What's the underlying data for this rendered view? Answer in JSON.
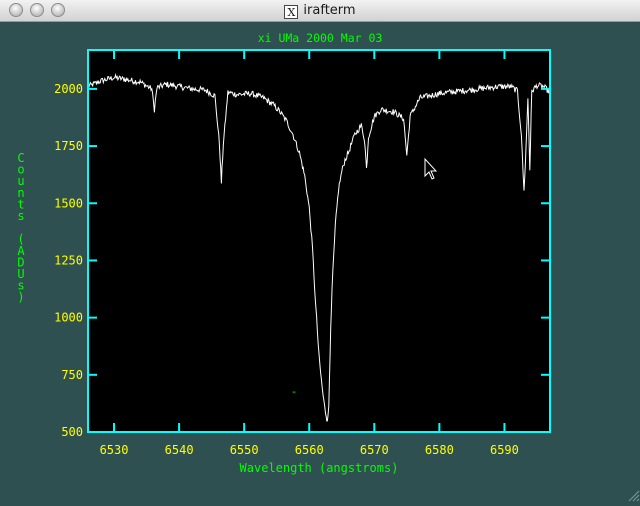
{
  "window": {
    "title": "irafterm"
  },
  "colors": {
    "background": "#2f5050",
    "frame": "#00ffff",
    "title_text": "#00ff00",
    "tick_labels": "#ffff00",
    "spectrum": "#ffffff",
    "plot_bg": "#000000"
  },
  "chart_data": {
    "type": "line",
    "title": "xi UMa 2000 Mar 03",
    "xlabel": "Wavelength (angstroms)",
    "ylabel": "Counts (ADUs)",
    "xlim": [
      6526,
      6597
    ],
    "ylim": [
      500,
      2170
    ],
    "xticks": [
      6530,
      6540,
      6550,
      6560,
      6570,
      6580,
      6590
    ],
    "yticks": [
      500,
      750,
      1000,
      1250,
      1500,
      1750,
      2000
    ],
    "xtick_labels": [
      "6530",
      "6540",
      "6550",
      "6560",
      "6570",
      "6580",
      "6590"
    ],
    "ytick_labels": [
      "500",
      "750",
      "1000",
      "1250",
      "1500",
      "1750",
      "2000"
    ],
    "series": [
      {
        "x": [
          6526.0,
          6528.0,
          6530.0,
          6532.0,
          6534.0,
          6535.8,
          6536.2,
          6536.6,
          6538.0,
          6540.0,
          6542.0,
          6544.0,
          6545.5,
          6546.2,
          6546.5,
          6546.8,
          6547.5,
          6549.0,
          6551.0,
          6553.0,
          6554.5,
          6555.5,
          6556.5,
          6557.5,
          6558.5,
          6559.3,
          6560.0,
          6560.5,
          6561.0,
          6561.5,
          6562.0,
          6562.4,
          6562.7,
          6562.85,
          6563.0,
          6563.2,
          6563.5,
          6564.0,
          6564.5,
          6565.0,
          6565.5,
          6566.0,
          6567.0,
          6568.0,
          6568.5,
          6568.8,
          6569.1,
          6570.0,
          6571.0,
          6573.0,
          6574.5,
          6575.0,
          6575.5,
          6577.0,
          6580.0,
          6583.0,
          6586.0,
          6589.0,
          6591.0,
          6592.0,
          6592.6,
          6593.0,
          6593.3,
          6593.6,
          6593.9,
          6594.2,
          6595.0,
          6596.0,
          6596.8
        ],
        "y": [
          2010,
          2035,
          2050,
          2040,
          2030,
          2000,
          1910,
          2005,
          2020,
          2010,
          2000,
          1995,
          1970,
          1760,
          1590,
          1760,
          1985,
          1975,
          1980,
          1960,
          1930,
          1900,
          1860,
          1800,
          1720,
          1620,
          1480,
          1300,
          1050,
          830,
          690,
          600,
          560,
          555,
          620,
          850,
          1120,
          1400,
          1560,
          1640,
          1690,
          1720,
          1800,
          1840,
          1780,
          1650,
          1790,
          1880,
          1910,
          1900,
          1870,
          1710,
          1880,
          1960,
          1980,
          1990,
          2000,
          2010,
          2010,
          1990,
          1800,
          1550,
          1730,
          1960,
          1650,
          1990,
          2015,
          2010,
          1990
        ]
      }
    ],
    "grid": false,
    "annotation": "-"
  }
}
